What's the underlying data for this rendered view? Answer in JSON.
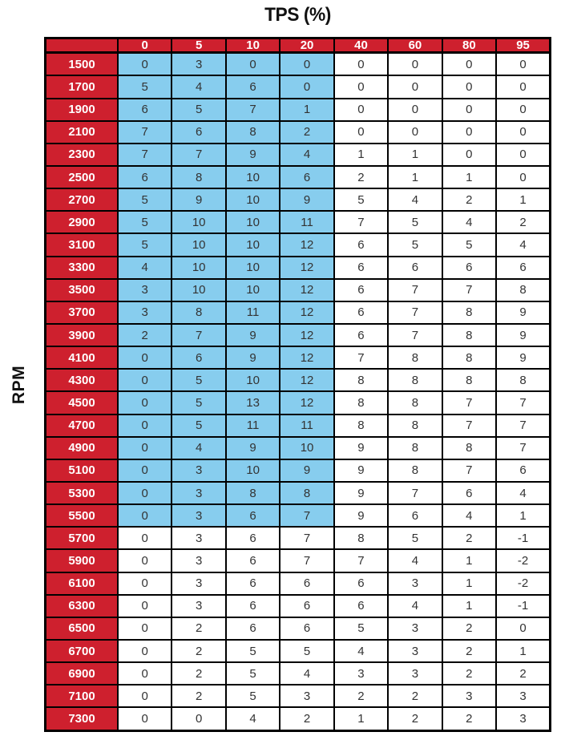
{
  "title": "TPS (%)",
  "y_axis_label": "RPM",
  "colors": {
    "header_bg": "#CE202E",
    "header_text": "#FFFFFF",
    "highlight_bg": "#87CDEE",
    "cell_bg": "#FFFFFF",
    "cell_text": "#333333",
    "border": "#000000"
  },
  "chart_data": {
    "type": "table",
    "title": "TPS (%)",
    "xlabel": "TPS (%)",
    "ylabel": "RPM",
    "columns": [
      "0",
      "5",
      "10",
      "20",
      "40",
      "60",
      "80",
      "95"
    ],
    "rows": [
      {
        "rpm": "1500",
        "values": [
          0,
          3,
          0,
          0,
          0,
          0,
          0,
          0
        ]
      },
      {
        "rpm": "1700",
        "values": [
          5,
          4,
          6,
          0,
          0,
          0,
          0,
          0
        ]
      },
      {
        "rpm": "1900",
        "values": [
          6,
          5,
          7,
          1,
          0,
          0,
          0,
          0
        ]
      },
      {
        "rpm": "2100",
        "values": [
          7,
          6,
          8,
          2,
          0,
          0,
          0,
          0
        ]
      },
      {
        "rpm": "2300",
        "values": [
          7,
          7,
          9,
          4,
          1,
          1,
          0,
          0
        ]
      },
      {
        "rpm": "2500",
        "values": [
          6,
          8,
          10,
          6,
          2,
          1,
          1,
          0
        ]
      },
      {
        "rpm": "2700",
        "values": [
          5,
          9,
          10,
          9,
          5,
          4,
          2,
          1
        ]
      },
      {
        "rpm": "2900",
        "values": [
          5,
          10,
          10,
          11,
          7,
          5,
          4,
          2
        ]
      },
      {
        "rpm": "3100",
        "values": [
          5,
          10,
          10,
          12,
          6,
          5,
          5,
          4
        ]
      },
      {
        "rpm": "3300",
        "values": [
          4,
          10,
          10,
          12,
          6,
          6,
          6,
          6
        ]
      },
      {
        "rpm": "3500",
        "values": [
          3,
          10,
          10,
          12,
          6,
          7,
          7,
          8
        ]
      },
      {
        "rpm": "3700",
        "values": [
          3,
          8,
          11,
          12,
          6,
          7,
          8,
          9
        ]
      },
      {
        "rpm": "3900",
        "values": [
          2,
          7,
          9,
          12,
          6,
          7,
          8,
          9
        ]
      },
      {
        "rpm": "4100",
        "values": [
          0,
          6,
          9,
          12,
          7,
          8,
          8,
          9
        ]
      },
      {
        "rpm": "4300",
        "values": [
          0,
          5,
          10,
          12,
          8,
          8,
          8,
          8
        ]
      },
      {
        "rpm": "4500",
        "values": [
          0,
          5,
          13,
          12,
          8,
          8,
          7,
          7
        ]
      },
      {
        "rpm": "4700",
        "values": [
          0,
          5,
          11,
          11,
          8,
          8,
          7,
          7
        ]
      },
      {
        "rpm": "4900",
        "values": [
          0,
          4,
          9,
          10,
          9,
          8,
          8,
          7
        ]
      },
      {
        "rpm": "5100",
        "values": [
          0,
          3,
          10,
          9,
          9,
          8,
          7,
          6
        ]
      },
      {
        "rpm": "5300",
        "values": [
          0,
          3,
          8,
          8,
          9,
          7,
          6,
          4
        ]
      },
      {
        "rpm": "5500",
        "values": [
          0,
          3,
          6,
          7,
          9,
          6,
          4,
          1
        ]
      },
      {
        "rpm": "5700",
        "values": [
          0,
          3,
          6,
          7,
          8,
          5,
          2,
          -1
        ]
      },
      {
        "rpm": "5900",
        "values": [
          0,
          3,
          6,
          7,
          7,
          4,
          1,
          -2
        ]
      },
      {
        "rpm": "6100",
        "values": [
          0,
          3,
          6,
          6,
          6,
          3,
          1,
          -2
        ]
      },
      {
        "rpm": "6300",
        "values": [
          0,
          3,
          6,
          6,
          6,
          4,
          1,
          -1
        ]
      },
      {
        "rpm": "6500",
        "values": [
          0,
          2,
          6,
          6,
          5,
          3,
          2,
          0
        ]
      },
      {
        "rpm": "6700",
        "values": [
          0,
          2,
          5,
          5,
          4,
          3,
          2,
          1
        ]
      },
      {
        "rpm": "6900",
        "values": [
          0,
          2,
          5,
          4,
          3,
          3,
          2,
          2
        ]
      },
      {
        "rpm": "7100",
        "values": [
          0,
          2,
          5,
          3,
          2,
          2,
          3,
          3
        ]
      },
      {
        "rpm": "7300",
        "values": [
          0,
          0,
          4,
          2,
          1,
          2,
          2,
          3
        ]
      }
    ],
    "highlight": {
      "description": "light blue shaded region",
      "rpm_range": [
        "1500",
        "5500"
      ],
      "tps_columns": [
        "0",
        "5",
        "10",
        "20"
      ],
      "row_start": 0,
      "row_end": 20,
      "col_start": 0,
      "col_end": 3
    },
    "legend_position": "none",
    "grid": true
  }
}
